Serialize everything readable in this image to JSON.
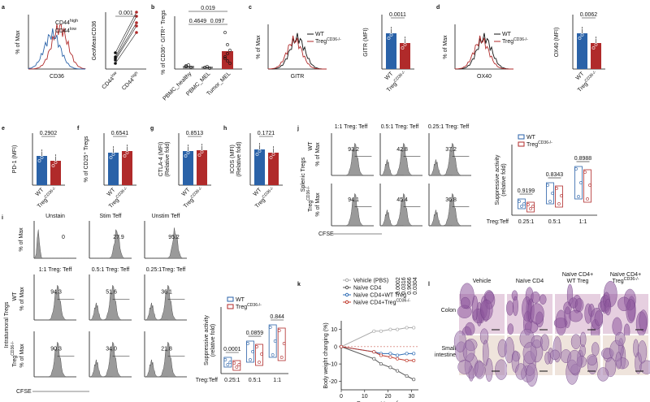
{
  "a": {
    "letter": "a",
    "hist_ylabel": "% of Max",
    "hist_xlabel": "CD36",
    "legend": [
      {
        "text": "CD44",
        "sup": "high"
      },
      {
        "text": "CD44",
        "sup": "low"
      }
    ],
    "ylabel": "GeoMeanCD36",
    "p": "0.001",
    "categories": [
      {
        "text": "CD44",
        "sup": "low"
      },
      {
        "text": "CD44",
        "sup": "high"
      }
    ]
  },
  "b": {
    "letter": "b",
    "ylabel": "% of CD36⁺ GITR⁺ Tregs",
    "p": [
      "0.019",
      "0.4649",
      "0.097"
    ],
    "categories": [
      "PBMC_healthy",
      "PBMC_MEL",
      "Tumor_MEL"
    ]
  },
  "c": {
    "letter": "c",
    "hist_ylabel": "% of Max",
    "hist_xlabel": "GITR",
    "legend": [
      {
        "text": "WT",
        "sup": ""
      },
      {
        "text": "Treg",
        "sup": "CD36-/-"
      }
    ],
    "ylabel": "GITR (MFI)",
    "p": "0.0011",
    "categories": [
      {
        "text": "WT",
        "sup": ""
      },
      {
        "text": "Treg",
        "sup": "CD36-/-"
      }
    ]
  },
  "d": {
    "letter": "d",
    "hist_ylabel": "% of Max",
    "hist_xlabel": "OX40",
    "legend": [
      {
        "text": "WT",
        "sup": ""
      },
      {
        "text": "Treg",
        "sup": "CD36-/-"
      }
    ],
    "ylabel": "OX40 (MFI)",
    "p": "0.0062",
    "categories": [
      {
        "text": "WT",
        "sup": ""
      },
      {
        "text": "Treg",
        "sup": "CD36-/-"
      }
    ]
  },
  "e": {
    "letter": "e",
    "ylabel": [
      "PD-1 (MFI)"
    ],
    "p": "0.2902",
    "categories": [
      {
        "text": "WT",
        "sup": ""
      },
      {
        "text": "Treg",
        "sup": "CD36-/-"
      }
    ]
  },
  "f": {
    "letter": "f",
    "ylabel": [
      "% of CD25⁺ Tregs"
    ],
    "p": "0.6541",
    "categories": [
      {
        "text": "WT",
        "sup": ""
      },
      {
        "text": "Treg",
        "sup": "CD36-/-"
      }
    ]
  },
  "g": {
    "letter": "g",
    "ylabel": [
      "CTLA-4 (MFI)",
      "(Relative fold)"
    ],
    "p": "0.8513",
    "categories": [
      {
        "text": "WT",
        "sup": ""
      },
      {
        "text": "Treg",
        "sup": "CD36-/-"
      }
    ]
  },
  "h": {
    "letter": "h",
    "ylabel": [
      "ICOS (MFI)",
      "(Relative fold)"
    ],
    "p": "0.1721",
    "categories": [
      {
        "text": "WT",
        "sup": ""
      },
      {
        "text": "Treg",
        "sup": "CD36-/-"
      }
    ]
  },
  "j": {
    "letter": "j",
    "headers": [
      "1:1 Treg: Teff",
      "0.5:1 Treg: Teff",
      "0.25:1 Treg: Teff"
    ],
    "percents": [
      [
        "93.2",
        "42.8",
        "37.2"
      ],
      [
        "94.1",
        "45.4",
        "36.8"
      ]
    ],
    "rows": [
      {
        "text": "WT",
        "sup": ""
      },
      {
        "text": "Treg",
        "sup": "CD36-/-"
      }
    ],
    "row_ylabel": "% of Max",
    "group": "Splenic Tregs",
    "xlabel": "CFSE",
    "legend": [
      {
        "text": "WT",
        "sup": ""
      },
      {
        "text": "Treg",
        "sup": "CD36-/-"
      }
    ],
    "p": [
      "0.9199",
      "0.8343",
      "0.8988"
    ],
    "ylabel": [
      "Suppressive activity",
      "(relative fold)"
    ],
    "ratio_label": "Treg:Teff",
    "categories": [
      "0.25:1",
      "0.5:1",
      "1:1"
    ]
  },
  "i": {
    "letter": "i",
    "top_headers": [
      "Unstain",
      "Stim Teff",
      "Unstim Teff"
    ],
    "top_percents": [
      "0",
      "27.9",
      "95.2"
    ],
    "headers": [
      "1:1 Treg: Teff",
      "0.5:1 Treg: Teff",
      "0.25:1Treg: Teff"
    ],
    "percents": [
      [
        "94.3",
        "51.6",
        "36.1"
      ],
      [
        "90.3",
        "34.0",
        "21.8"
      ]
    ],
    "rows": [
      {
        "text": "WT",
        "sup": ""
      },
      {
        "text": "Treg",
        "sup": "CD36-/-"
      }
    ],
    "row_ylabel": "% of Max",
    "group": "Intratumoral Tregs",
    "xlabel": "CFSE",
    "legend": [
      {
        "text": "WT",
        "sup": ""
      },
      {
        "text": "Treg",
        "sup": "CD36-/-"
      }
    ],
    "p": [
      "0.0001",
      "0.0859",
      "0.844"
    ],
    "ylabel": [
      "Suppressive activity",
      "(relative fold)"
    ],
    "ratio_label": "Treg:Teff",
    "categories": [
      "0.25:1",
      "0.5:1",
      "1:1"
    ]
  },
  "k": {
    "letter": "k",
    "ylabel": "Body weight changing (%)",
    "xlabel": "Days post transfer",
    "p": [
      "0.0002",
      "0.0316",
      "0.9666",
      "0.0304"
    ],
    "x": [
      0,
      14,
      17,
      21,
      24,
      28,
      31
    ],
    "xlim": [
      0,
      33
    ],
    "ylim": [
      -25,
      15
    ],
    "xticks": [
      0,
      10,
      20,
      30
    ],
    "yticks": [
      10,
      0,
      -10,
      -20
    ],
    "series": [
      {
        "name": {
          "text": "Vehicle (PBS)",
          "sup": ""
        },
        "color": "#aaaaaa",
        "values": [
          0,
          9,
          9,
          10,
          10,
          11,
          11
        ]
      },
      {
        "name": {
          "text": "Naïve CD4",
          "sup": ""
        },
        "color": "#555555",
        "values": [
          0,
          -7,
          -10,
          -12,
          -14,
          -17,
          -19
        ]
      },
      {
        "name": {
          "text": "Naïve CD4+WT Treg",
          "sup": ""
        },
        "color": "#2f6db5",
        "values": [
          0,
          -3,
          -4,
          -4,
          -5,
          -4,
          -4
        ]
      },
      {
        "name": {
          "text": "Naïve CD4+Treg",
          "sup": "CD36-/-"
        },
        "color": "#c0392b",
        "values": [
          0,
          -3,
          -5,
          -6,
          -7,
          -8,
          -8
        ]
      }
    ]
  },
  "l": {
    "letter": "l",
    "headers": [
      [
        "Vehicle"
      ],
      [
        "Naïve CD4"
      ],
      [
        "Naïve CD4+",
        "WT Treg"
      ],
      [
        "Naïve CD4+",
        "Treg"
      ]
    ],
    "header_sup": "CD36-/-",
    "rows": [
      [
        "Colon"
      ],
      [
        "Small",
        "intestine"
      ]
    ]
  }
}
